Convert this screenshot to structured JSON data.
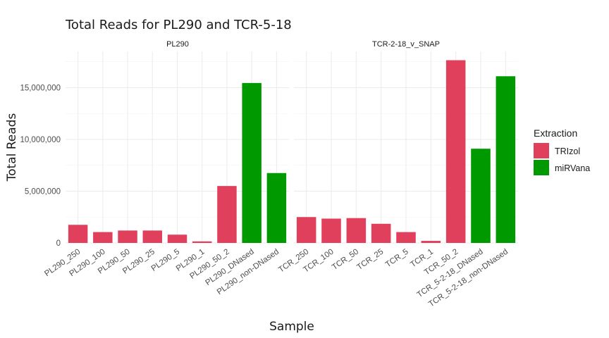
{
  "chart_data": {
    "type": "bar",
    "title": "Total Reads for PL290 and TCR-5-18",
    "xlabel": "Sample",
    "ylabel": "Total Reads",
    "ylim": [
      0,
      18500000
    ],
    "yticks": [
      0,
      5000000,
      10000000,
      15000000
    ],
    "ytick_labels": [
      "0",
      "5,000,000",
      "10,000,000",
      "15,000,000"
    ],
    "grid": true,
    "legend": {
      "title": "Extraction",
      "placement": "right",
      "entries": [
        {
          "name": "TRIzol",
          "color": "#E0405C"
        },
        {
          "name": "miRVana",
          "color": "#009900"
        }
      ]
    },
    "facets": [
      {
        "label": "PL290",
        "categories": [
          "PL290_250",
          "PL290_100",
          "PL290_50",
          "PL290_25",
          "PL290_5",
          "PL290_1",
          "PL290_50_2",
          "PL290_DNased",
          "PL290_non-DNased"
        ],
        "values": [
          1750000,
          1050000,
          1200000,
          1200000,
          800000,
          150000,
          5500000,
          15450000,
          6750000
        ],
        "extraction": [
          "TRIzol",
          "TRIzol",
          "TRIzol",
          "TRIzol",
          "TRIzol",
          "TRIzol",
          "TRIzol",
          "miRVana",
          "miRVana"
        ]
      },
      {
        "label": "TCR-2-18_v_SNAP",
        "categories": [
          "TCR_250",
          "TCR_100",
          "TCR_50",
          "TCR_25",
          "TCR_5",
          "TCR_1",
          "TCR_50_2",
          "TCR_5-2-18_DNased",
          "TCR_5-2-18_non-DNased"
        ],
        "values": [
          2500000,
          2350000,
          2400000,
          1850000,
          1050000,
          200000,
          17650000,
          9100000,
          16100000
        ],
        "extraction": [
          "TRIzol",
          "TRIzol",
          "TRIzol",
          "TRIzol",
          "TRIzol",
          "TRIzol",
          "TRIzol",
          "miRVana",
          "miRVana"
        ]
      }
    ]
  }
}
